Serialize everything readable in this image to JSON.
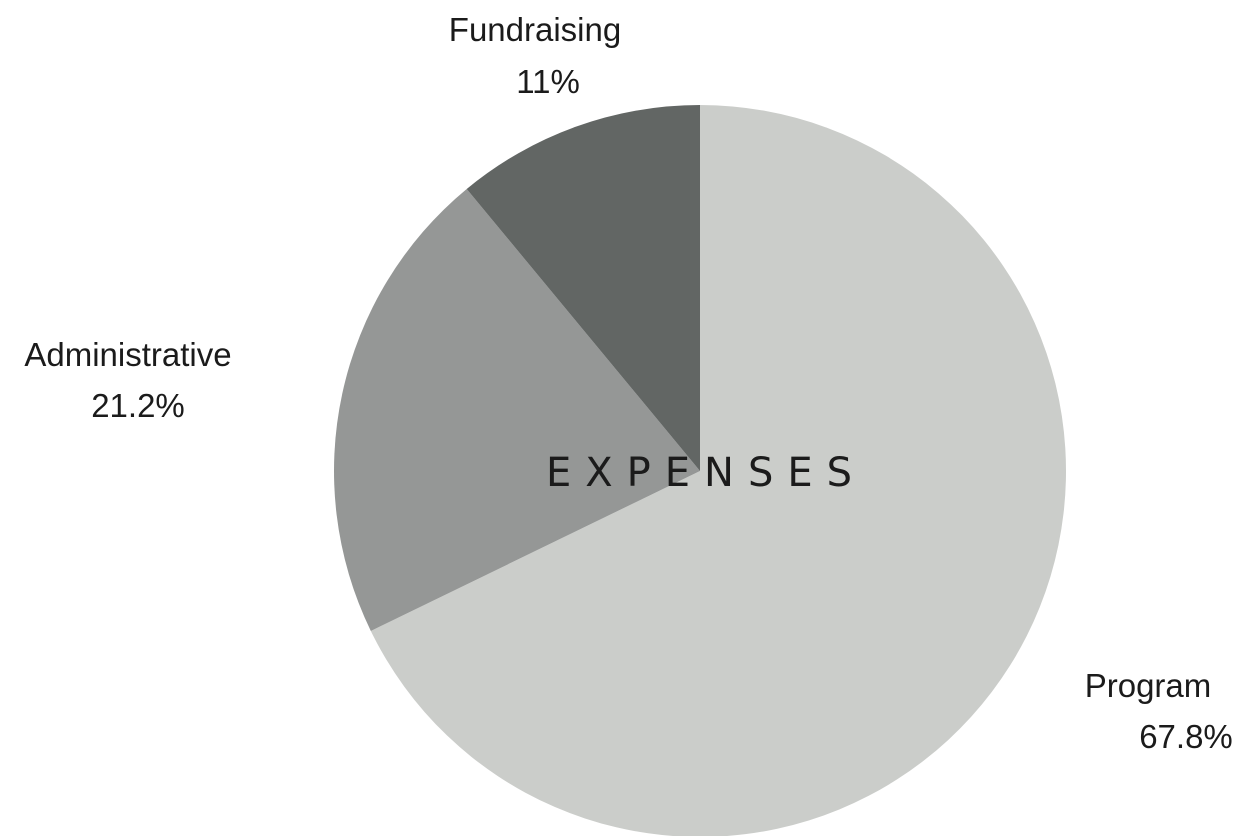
{
  "chart_data": {
    "type": "pie",
    "title": "EXPENSES",
    "start_angle_deg": 0,
    "direction": "clockwise",
    "slices": [
      {
        "label": "Program",
        "value": 67.8,
        "display": "67.8%",
        "color": "#cbcdca"
      },
      {
        "label": "Administrative",
        "value": 21.2,
        "display": "21.2%",
        "color": "#959796"
      },
      {
        "label": "Fundraising",
        "value": 11,
        "display": "11%",
        "color": "#626664"
      }
    ],
    "legend": "none"
  }
}
